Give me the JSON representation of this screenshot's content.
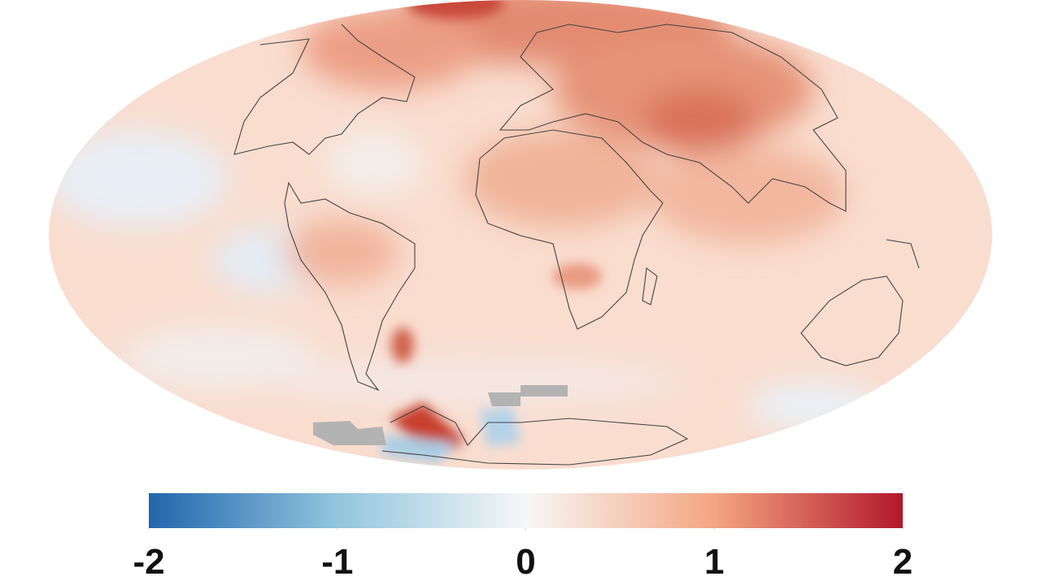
{
  "colorbar": {
    "lim": [
      -2,
      2
    ],
    "ticks": [
      -2,
      -1,
      0,
      1,
      2
    ],
    "colors": [
      "#2166ac",
      "#92c5de",
      "#f7f7f7",
      "#f4a582",
      "#b2182b"
    ]
  }
}
